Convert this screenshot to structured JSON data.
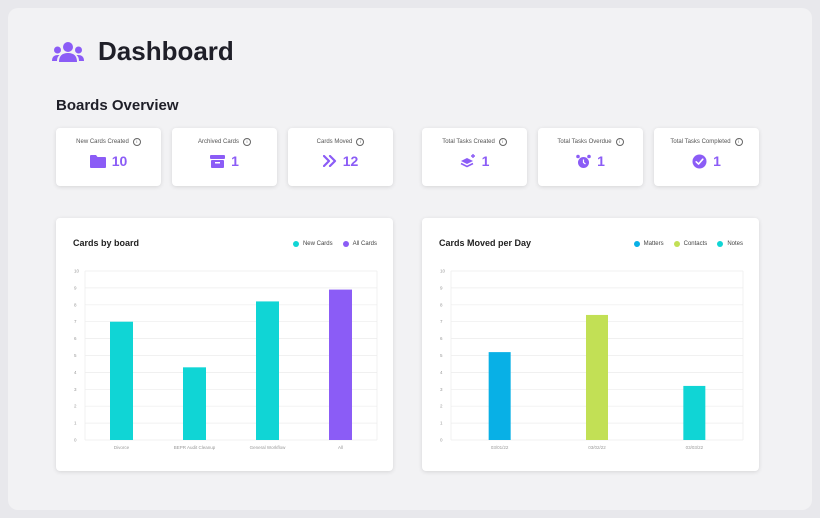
{
  "page_title": "Dashboard",
  "section_title": "Boards Overview",
  "colors": {
    "accent": "#8b5cf6",
    "teal": "#10d5d5",
    "cyan_blue": "#08b0e6",
    "lime": "#c2e055"
  },
  "stats": [
    {
      "label": "New Cards Created",
      "value": "10",
      "icon": "folder-icon"
    },
    {
      "label": "Archived Cards",
      "value": "1",
      "icon": "archive-icon"
    },
    {
      "label": "Cards Moved",
      "value": "12",
      "icon": "double-chevron-right-icon"
    },
    {
      "label": "Total Tasks Created",
      "value": "1",
      "icon": "layers-plus-icon"
    },
    {
      "label": "Total Tasks Overdue",
      "value": "1",
      "icon": "alarm-clock-icon"
    },
    {
      "label": "Total Tasks Completed",
      "value": "1",
      "icon": "check-circle-icon"
    }
  ],
  "charts": {
    "cards_by_board": {
      "title": "Cards by board",
      "legend": [
        "New Cards",
        "All Cards"
      ]
    },
    "cards_moved_per_day": {
      "title": "Cards Moved per Day",
      "legend": [
        "Matters",
        "Contacts",
        "Notes"
      ]
    }
  },
  "chart_data": [
    {
      "type": "bar",
      "title": "Cards by board",
      "categories": [
        "Divorce",
        "BEPR Audit Cleanup",
        "General Workflow",
        "All"
      ],
      "values": [
        7,
        4.3,
        8.2,
        8.9
      ],
      "colors": [
        "#10d5d5",
        "#10d5d5",
        "#10d5d5",
        "#8b5cf6"
      ],
      "ylim": [
        0,
        10
      ],
      "yticks": [
        0,
        1,
        2,
        3,
        4,
        5,
        6,
        7,
        8,
        9,
        10
      ],
      "legend": [
        {
          "name": "New Cards",
          "color": "#10d5d5"
        },
        {
          "name": "All Cards",
          "color": "#8b5cf6"
        }
      ],
      "legend_position": "top-right",
      "grid": true
    },
    {
      "type": "bar",
      "title": "Cards Moved per Day",
      "categories": [
        "03/01/22",
        "03/02/22",
        "03/03/22"
      ],
      "values": [
        5.2,
        7.4,
        3.2
      ],
      "colors": [
        "#08b0e6",
        "#c2e055",
        "#10d5d5"
      ],
      "ylim": [
        0,
        10
      ],
      "yticks": [
        0,
        1,
        2,
        3,
        4,
        5,
        6,
        7,
        8,
        9,
        10
      ],
      "legend": [
        {
          "name": "Matters",
          "color": "#08b0e6"
        },
        {
          "name": "Contacts",
          "color": "#c2e055"
        },
        {
          "name": "Notes",
          "color": "#10d5d5"
        }
      ],
      "legend_position": "top-right",
      "grid": true
    }
  ]
}
